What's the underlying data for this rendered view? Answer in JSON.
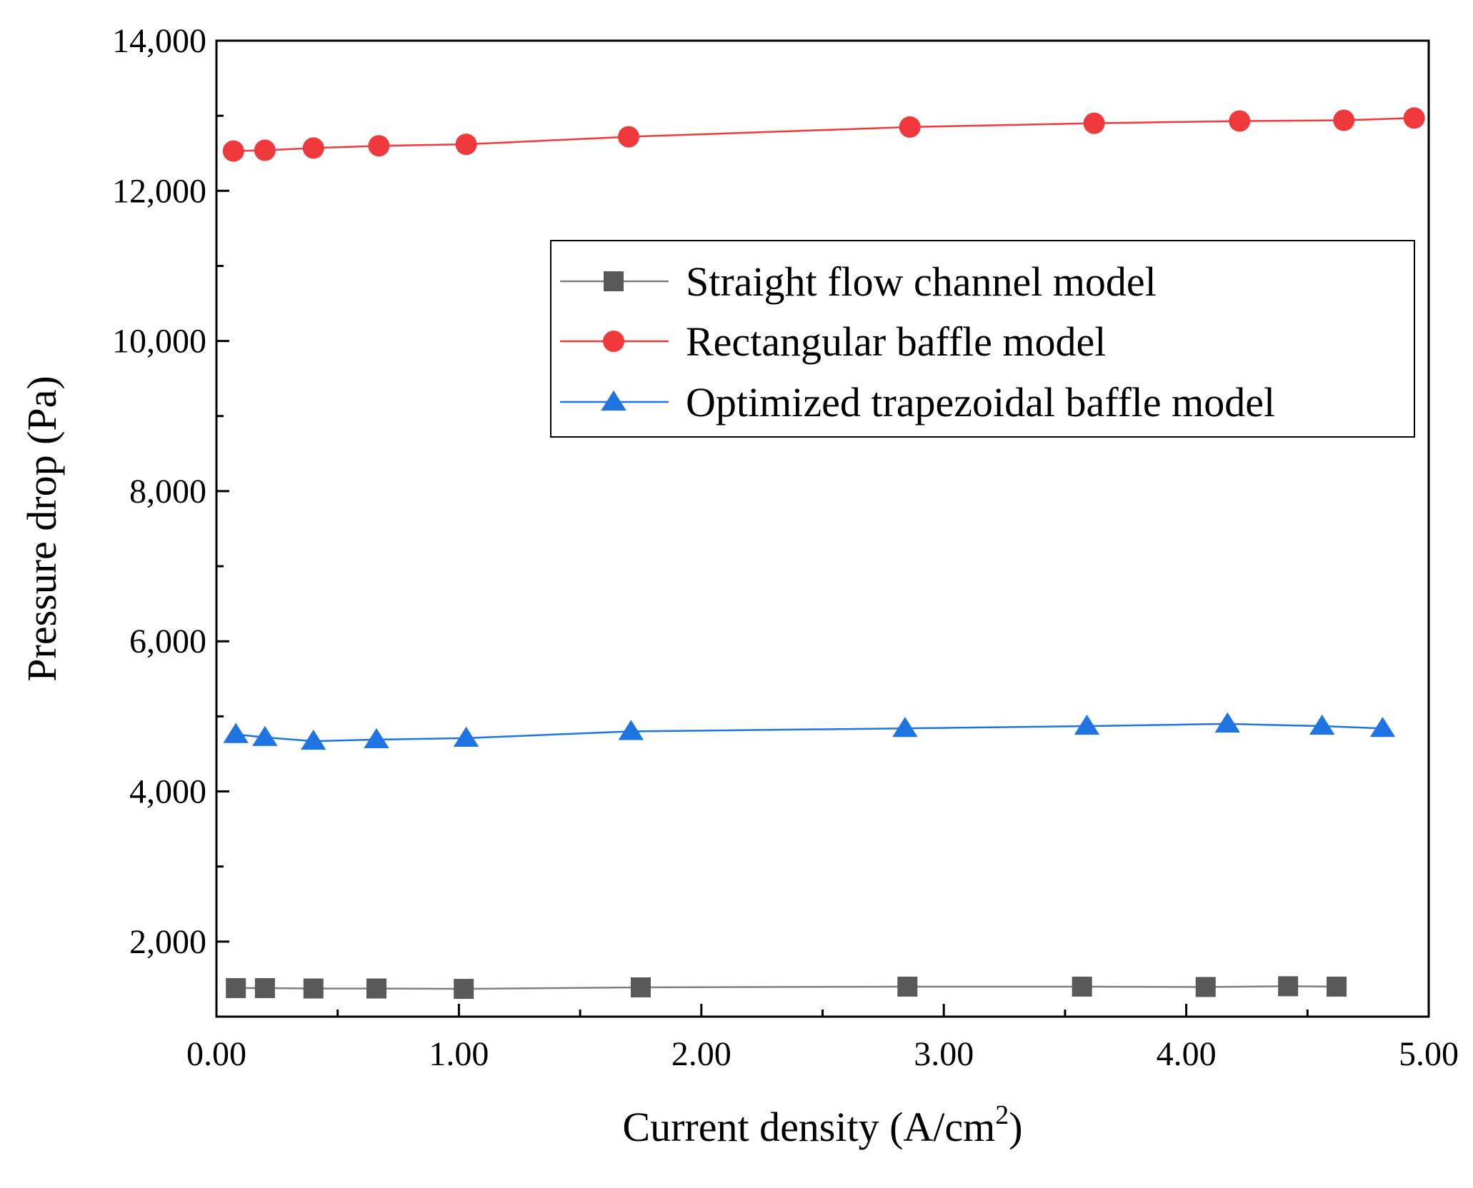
{
  "chart_data": {
    "type": "line",
    "xlabel": "Current density (A/cm",
    "xlabel_sup": "2",
    "xlabel_close": ")",
    "ylabel": "Pressure drop (Pa)",
    "xlim": [
      0,
      5
    ],
    "ylim": [
      1000,
      14000
    ],
    "xticks": [
      0,
      1,
      2,
      3,
      4,
      5
    ],
    "xtick_labels": [
      "0.00",
      "1.00",
      "2.00",
      "3.00",
      "4.00",
      "5.00"
    ],
    "yticks": [
      2000,
      4000,
      6000,
      8000,
      10000,
      12000,
      14000
    ],
    "ytick_labels": [
      "2,000",
      "4,000",
      "6,000",
      "8,000",
      "10,000",
      "12,000",
      "14,000"
    ],
    "legend_position": "upper-right",
    "series": [
      {
        "name": "Straight flow channel model",
        "color": "#595959",
        "line_color": "#7f7f7f",
        "marker": "square",
        "x": [
          0.08,
          0.2,
          0.4,
          0.66,
          1.02,
          1.75,
          2.85,
          3.57,
          4.08,
          4.42,
          4.62
        ],
        "y": [
          1380,
          1380,
          1375,
          1375,
          1370,
          1390,
          1400,
          1400,
          1395,
          1405,
          1400
        ]
      },
      {
        "name": "Rectangular baffle model",
        "color": "#f0393c",
        "line_color": "#f0393c",
        "marker": "circle",
        "x": [
          0.07,
          0.2,
          0.4,
          0.67,
          1.03,
          1.7,
          2.86,
          3.62,
          4.22,
          4.65,
          4.94
        ],
        "y": [
          12530,
          12540,
          12570,
          12600,
          12620,
          12720,
          12850,
          12900,
          12930,
          12940,
          12970
        ]
      },
      {
        "name": "Optimized trapezoidal baffle model",
        "color": "#1e74e0",
        "line_color": "#1e74e0",
        "marker": "triangle",
        "x": [
          0.08,
          0.2,
          0.4,
          0.66,
          1.03,
          1.71,
          2.84,
          3.59,
          4.17,
          4.56,
          4.81
        ],
        "y": [
          4760,
          4720,
          4670,
          4690,
          4710,
          4800,
          4840,
          4870,
          4900,
          4870,
          4840
        ]
      }
    ]
  }
}
